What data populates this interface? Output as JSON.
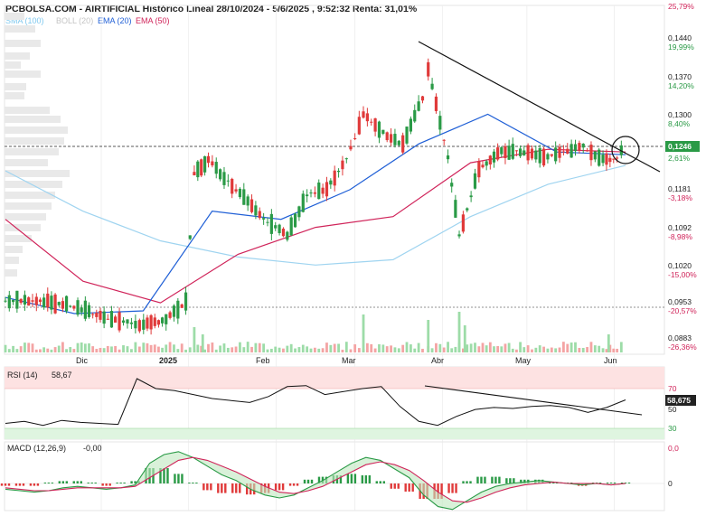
{
  "header": {
    "title": "PCBOLSA.COM - AIRTIFICIAL Histórico Lineal 28/10/2024 - 5/6/2025 , 9:52:32 Renta: 31,01%",
    "legend": [
      {
        "label": "SMA (100)",
        "color": "#7fc8ee"
      },
      {
        "label": "BOLL (20)",
        "color": "#cccccc"
      },
      {
        "label": "EMA (20)",
        "color": "#1f5fd6"
      },
      {
        "label": "EMA (50)",
        "color": "#d0245a"
      }
    ]
  },
  "colors": {
    "up": "#2a9a46",
    "down": "#e03a3a",
    "rsi": "#111111",
    "trendline": "#111111",
    "macd_line": "#2a9a46",
    "macd_signal": "#d0245a"
  },
  "price_axis": {
    "ticks": [
      {
        "price": "0,1440",
        "pct": "19,99%"
      },
      {
        "price": "0,1370",
        "pct": "14,20%"
      },
      {
        "price": "0,1300",
        "pct": "8,40%"
      },
      {
        "price": "0,1181",
        "pct": "-3,18%"
      },
      {
        "price": "0,1092",
        "pct": "-8,98%"
      },
      {
        "price": "0,1020",
        "pct": "-15,00%"
      },
      {
        "price": "0,0953",
        "pct": "-20,57%"
      },
      {
        "price": "0,0883",
        "pct": "-26,36%"
      }
    ],
    "top_pct": "25,79%",
    "current": {
      "price": "0,1246",
      "pct": "2,61%"
    }
  },
  "x_axis": [
    "Dic",
    "2025",
    "Feb",
    "Mar",
    "Abr",
    "May",
    "Jun"
  ],
  "rsi": {
    "label": "RSI (14)",
    "value": "58,67",
    "ticks": [
      "70",
      "50",
      "30"
    ],
    "current_label": "58,675"
  },
  "macd": {
    "label": "MACD (12,26,9)",
    "value": "-0,00",
    "ticks": [
      "0,0",
      "0"
    ]
  },
  "chart_data": [
    {
      "type": "candlestick",
      "title": "PCBOLSA.COM - AIRTIFICIAL Histórico Lineal 28/10/2024 - 5/6/2025",
      "period": [
        "28/10/2024",
        "5/6/2025"
      ],
      "y_ticks": [
        0.144,
        0.137,
        0.13,
        0.1181,
        0.1092,
        0.102,
        0.0953,
        0.0883
      ],
      "current_price": 0.1246,
      "return": "31,01%",
      "reference_lines": [
        0.1246,
        0.0953
      ],
      "close_path": [
        [
          "2024-10-28",
          0.0953
        ],
        [
          "2024-11-08",
          0.0955
        ],
        [
          "2024-11-20",
          0.0945
        ],
        [
          "2024-11-28",
          0.093
        ],
        [
          "2024-12-06",
          0.0918
        ],
        [
          "2024-12-16",
          0.0908
        ],
        [
          "2024-12-24",
          0.092
        ],
        [
          "2024-12-31",
          0.095
        ],
        [
          "2025-01-03",
          0.119
        ],
        [
          "2025-01-08",
          0.1215
        ],
        [
          "2025-01-15",
          0.1175
        ],
        [
          "2025-01-22",
          0.114
        ],
        [
          "2025-01-29",
          0.11
        ],
        [
          "2025-02-05",
          0.1075
        ],
        [
          "2025-02-12",
          0.115
        ],
        [
          "2025-02-19",
          0.116
        ],
        [
          "2025-02-26",
          0.1215
        ],
        [
          "2025-03-04",
          0.13
        ],
        [
          "2025-03-11",
          0.1265
        ],
        [
          "2025-03-18",
          0.1245
        ],
        [
          "2025-03-25",
          0.133
        ],
        [
          "2025-03-27",
          0.1385
        ],
        [
          "2025-04-03",
          0.122
        ],
        [
          "2025-04-07",
          0.1075
        ],
        [
          "2025-04-14",
          0.12
        ],
        [
          "2025-04-22",
          0.123
        ],
        [
          "2025-04-30",
          0.123
        ],
        [
          "2025-05-07",
          0.122
        ],
        [
          "2025-05-14",
          0.123
        ],
        [
          "2025-05-21",
          0.124
        ],
        [
          "2025-05-28",
          0.1215
        ],
        [
          "2025-06-02",
          0.122
        ],
        [
          "2025-06-05",
          0.1246
        ]
      ],
      "series": [
        {
          "name": "SMA (100)",
          "values": [
            0.1195,
            0.112,
            0.1065,
            0.1035,
            0.102,
            0.103,
            0.111,
            0.117,
            0.1205
          ]
        },
        {
          "name": "EMA (20)",
          "values": [
            0.096,
            0.093,
            0.0935,
            0.112,
            0.1105,
            0.116,
            0.1245,
            0.13,
            0.123,
            0.1225
          ]
        },
        {
          "name": "EMA (50)",
          "values": [
            0.1105,
            0.099,
            0.095,
            0.104,
            0.109,
            0.111,
            0.121,
            0.1235,
            0.123
          ]
        }
      ]
    },
    {
      "type": "line",
      "title": "RSI (14)",
      "ylim": [
        25,
        80
      ],
      "y_ticks": [
        70,
        50,
        30
      ],
      "values": [
        35,
        37,
        33,
        38,
        36,
        35,
        34,
        80,
        70,
        68,
        64,
        60,
        58,
        56,
        62,
        72,
        73,
        64,
        67,
        70,
        72,
        52,
        37,
        33,
        42,
        49,
        51,
        50,
        52,
        53,
        51,
        46,
        51,
        58.67
      ]
    },
    {
      "type": "bar",
      "title": "MACD (12,26,9)",
      "y_ticks": [
        "0,0",
        "0"
      ],
      "current": -0.0
    }
  ]
}
